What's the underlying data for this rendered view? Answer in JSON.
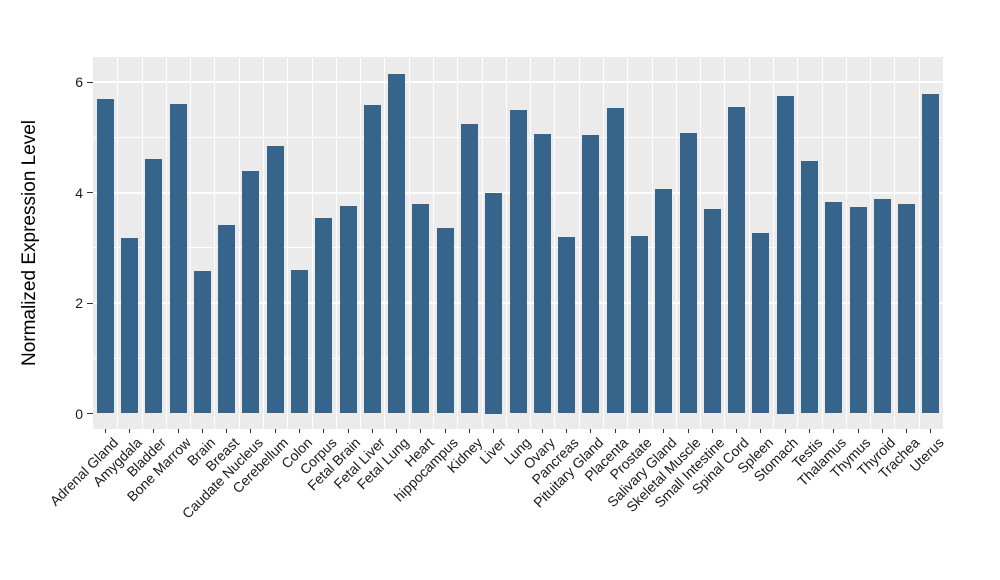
{
  "chart_data": {
    "type": "bar",
    "title": "",
    "xlabel": "",
    "ylabel": "Normalized Expression Level",
    "legend_position": "none",
    "x_label_rotation_deg": 45,
    "grid": "white horizontal major+minor gridlines and vertical category separators on gray panel",
    "ylim": [
      -0.28,
      6.45
    ],
    "yticks": [
      0,
      2,
      4,
      6
    ],
    "yticks_minor": [
      1,
      3,
      5
    ],
    "categories": [
      "Adrenal Gland",
      "Amygdala",
      "Bladder",
      "Bone Marrow",
      "Brain",
      "Breast",
      "Caudate Nucleus",
      "Cerebellum",
      "Colon",
      "Corpus",
      "Fetal Brain",
      "Fetal Liver",
      "Fetal Lung",
      "Heart",
      "hippocampus",
      "Kidney",
      "Liver",
      "Lung",
      "Ovary",
      "Pancreas",
      "Pituitary Gland",
      "Placenta",
      "Prostate",
      "Salivary Gland",
      "Skeletal Muscle",
      "Small Intestine",
      "Spinal Cord",
      "Spleen",
      "Stomach",
      "Testis",
      "Thalamus",
      "Thymus",
      "Thyroid",
      "Trachea",
      "Uterus"
    ],
    "values": [
      5.7,
      3.18,
      4.61,
      5.6,
      2.58,
      3.41,
      4.39,
      4.85,
      2.6,
      3.54,
      3.76,
      5.58,
      6.14,
      3.79,
      3.35,
      5.24,
      4.0,
      5.49,
      5.06,
      3.2,
      5.04,
      5.53,
      3.21,
      4.06,
      5.08,
      3.71,
      5.54,
      3.26,
      5.75,
      4.57,
      3.83,
      3.74,
      3.89,
      3.79,
      5.78
    ],
    "colors": {
      "bar": "#36648B",
      "panel_bg": "#EBEBEB",
      "grid": "#FFFFFF",
      "tick_text": "#1A1A1A",
      "axis_title": "#000000",
      "tick_mark": "#333333",
      "figure_bg": "#FFFFFF"
    }
  }
}
